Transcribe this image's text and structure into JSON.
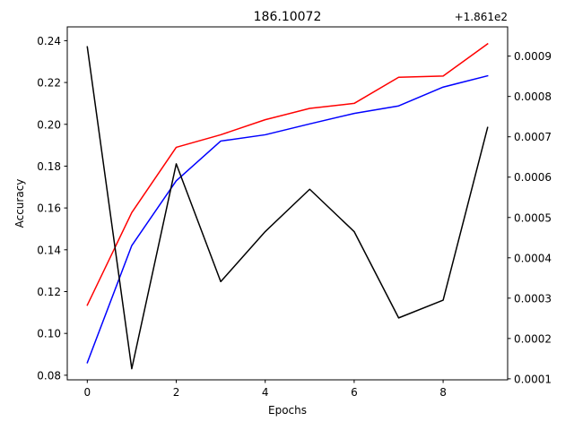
{
  "chart_data": {
    "type": "line",
    "title": "186.10072",
    "xlabel": "Epochs",
    "ylabel": "Accuracy",
    "y2_offset_label": "+1.861e2",
    "grid": false,
    "x": [
      0,
      1,
      2,
      3,
      4,
      5,
      6,
      7,
      8,
      9
    ],
    "xlim": [
      -0.45,
      9.45
    ],
    "xticks": [
      0,
      2,
      4,
      6,
      8
    ],
    "ylim": [
      0.0778,
      0.2466
    ],
    "yticks": [
      0.08,
      0.1,
      0.12,
      0.14,
      0.16,
      0.18,
      0.2,
      0.22,
      0.24
    ],
    "ytick_labels": [
      "0.08",
      "0.10",
      "0.12",
      "0.14",
      "0.16",
      "0.18",
      "0.20",
      "0.22",
      "0.24"
    ],
    "y2lim": [
      9.75e-05,
      0.0009725
    ],
    "y2ticks": [
      0.0001,
      0.0002,
      0.0003,
      0.0004,
      0.0005,
      0.0006,
      0.0007,
      0.0008,
      0.0009
    ],
    "y2tick_labels": [
      "0.0001",
      "0.0002",
      "0.0003",
      "0.0004",
      "0.0005",
      "0.0006",
      "0.0007",
      "0.0008",
      "0.0009"
    ],
    "series": [
      {
        "color": "#ff0000",
        "axis": "left",
        "values": [
          0.1135,
          0.1578,
          0.189,
          0.195,
          0.2022,
          0.2076,
          0.21,
          0.2225,
          0.2231,
          0.2385
        ]
      },
      {
        "color": "#0000ff",
        "axis": "left",
        "values": [
          0.086,
          0.142,
          0.173,
          0.192,
          0.195,
          0.2002,
          0.2052,
          0.2088,
          0.2178,
          0.2232
        ]
      },
      {
        "color": "#000000",
        "axis": "right",
        "values": [
          0.000923,
          0.000125,
          0.000633,
          0.000341,
          0.000465,
          0.00057,
          0.000465,
          0.000251,
          0.000295,
          0.000723
        ]
      }
    ]
  }
}
